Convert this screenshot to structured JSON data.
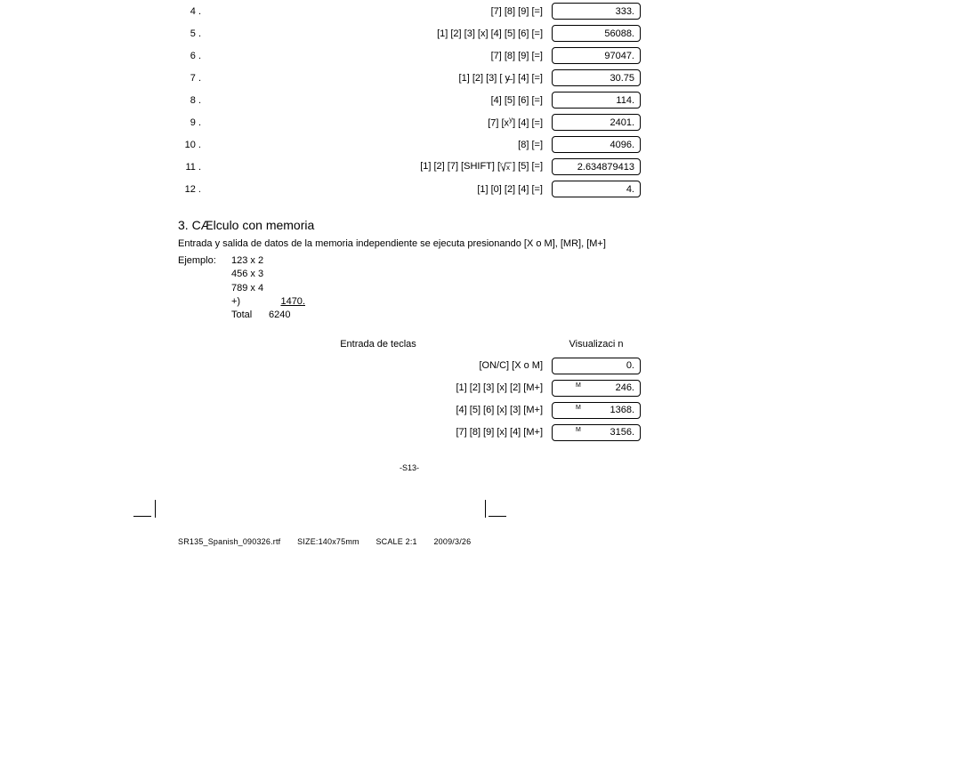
{
  "top_rows": [
    {
      "n": "4 .",
      "keys": "[7] [8] [9] [=]",
      "disp": "333."
    },
    {
      "n": "5 .",
      "keys": "[1] [2] [3] [x] [4] [5] [6] [=]",
      "disp": "56088."
    },
    {
      "n": "6 .",
      "keys": "[7] [8] [9] [=]",
      "disp": "97047."
    },
    {
      "n": "7 .",
      "keys": "[1] [2] [3] [ y̶ ] [4] [=]",
      "disp": "30.75"
    },
    {
      "n": "8 .",
      "keys": "[4] [5] [6] [=]",
      "disp": "114."
    },
    {
      "n": "9 .",
      "keys_html": "[7] [x<span class=\"sup\">y</span>] [4] [=]",
      "disp": "2401."
    },
    {
      "n": "10 .",
      "keys": "[8] [=]",
      "disp": "4096."
    },
    {
      "n": "11 .",
      "keys_root": true,
      "disp": "2.634879413"
    },
    {
      "n": "12 .",
      "keys": "[1] [0] [2] [4] [=]",
      "disp": "4."
    }
  ],
  "section": {
    "title": "3. CÆlculo con memoria",
    "body": "Entrada y salida de datos de la memoria independiente se ejecuta presionando  [X  o M], [MR], [M+]",
    "example_label": "Ejemplo:",
    "example_lines": [
      "123 x 2",
      "456 x 3",
      "789 x 4"
    ],
    "sum_plus": "+)",
    "sum_value": "1470",
    "total_label": "Total",
    "total_value": "6240"
  },
  "headers": {
    "keys": "Entrada de teclas",
    "disp": "Visualizaci n"
  },
  "mem_rows": [
    {
      "keys": "[ON/C] [X  o M]",
      "disp": "0.",
      "m": false
    },
    {
      "keys": "[1] [2] [3] [x] [2] [M+]",
      "disp": "246.",
      "m": true
    },
    {
      "keys": "[4] [5] [6] [x] [3] [M+]",
      "disp": "1368.",
      "m": true
    },
    {
      "keys": "[7] [8] [9] [x] [4] [M+]",
      "disp": "3156.",
      "m": true
    }
  ],
  "page_num": "-S13-",
  "footer": {
    "file": "SR135_Spanish_090326.rtf",
    "size": "SIZE:140x75mm",
    "scale": "SCALE 2:1",
    "date": "2009/3/26"
  }
}
